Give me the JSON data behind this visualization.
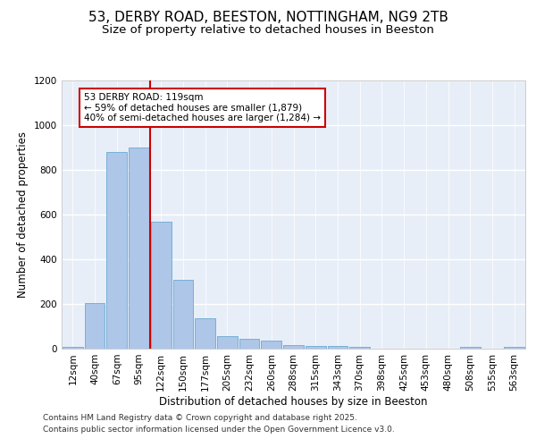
{
  "title": "53, DERBY ROAD, BEESTON, NOTTINGHAM, NG9 2TB",
  "subtitle": "Size of property relative to detached houses in Beeston",
  "xlabel": "Distribution of detached houses by size in Beeston",
  "ylabel": "Number of detached properties",
  "categories": [
    "12sqm",
    "40sqm",
    "67sqm",
    "95sqm",
    "122sqm",
    "150sqm",
    "177sqm",
    "205sqm",
    "232sqm",
    "260sqm",
    "288sqm",
    "315sqm",
    "343sqm",
    "370sqm",
    "398sqm",
    "425sqm",
    "453sqm",
    "480sqm",
    "508sqm",
    "535sqm",
    "563sqm"
  ],
  "values": [
    10,
    205,
    880,
    900,
    570,
    310,
    135,
    58,
    43,
    38,
    18,
    13,
    14,
    10,
    2,
    0,
    0,
    0,
    8,
    0,
    8
  ],
  "bar_color": "#aec6e8",
  "bar_edgecolor": "#6aaad4",
  "bg_color": "#e8eef8",
  "grid_color": "#ffffff",
  "vline_color": "#cc0000",
  "annotation_text": "53 DERBY ROAD: 119sqm\n← 59% of detached houses are smaller (1,879)\n40% of semi-detached houses are larger (1,284) →",
  "annotation_box_color": "#ffffff",
  "annotation_box_edgecolor": "#cc0000",
  "ylim": [
    0,
    1200
  ],
  "yticks": [
    0,
    200,
    400,
    600,
    800,
    1000,
    1200
  ],
  "footer_line1": "Contains HM Land Registry data © Crown copyright and database right 2025.",
  "footer_line2": "Contains public sector information licensed under the Open Government Licence v3.0.",
  "title_fontsize": 11,
  "subtitle_fontsize": 9.5,
  "label_fontsize": 8.5,
  "tick_fontsize": 7.5,
  "annotation_fontsize": 7.5,
  "footer_fontsize": 6.5
}
